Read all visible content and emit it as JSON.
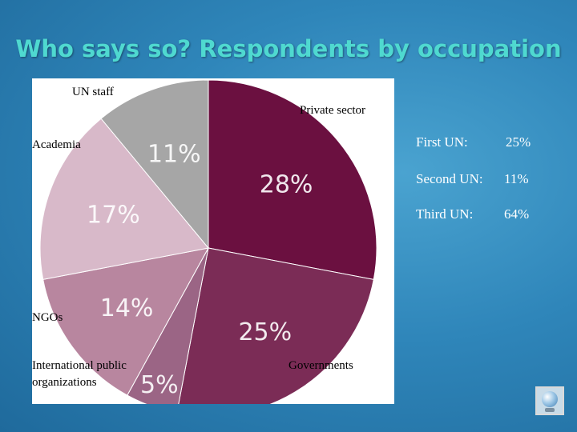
{
  "title": "Who says so? Respondents by occupation",
  "chart_data": {
    "type": "pie",
    "title": "",
    "slices": [
      {
        "label": "Private sector",
        "value": 28,
        "value_label": "28%",
        "color": "#6b1040"
      },
      {
        "label": "Governments",
        "value": 25,
        "value_label": "25%",
        "color": "#7b2c56"
      },
      {
        "label": "International public organizations",
        "value": 5,
        "value_label": "5%",
        "color": "#9b6585"
      },
      {
        "label": "NGOs",
        "value": 14,
        "value_label": "14%",
        "color": "#b8869f"
      },
      {
        "label": "Academia",
        "value": 17,
        "value_label": "17%",
        "color": "#d8b9c9"
      },
      {
        "label": "UN staff",
        "value": 11,
        "value_label": "11%",
        "color": "#a6a6a6"
      }
    ],
    "category_labels": {
      "un_staff": "UN staff",
      "private_sector": "Private sector",
      "academia": "Academia",
      "ngos": "NGOs",
      "intl_line1": "International public",
      "intl_line2": "organizations",
      "governments": "Governments"
    }
  },
  "stats": [
    {
      "label": "First UN:",
      "value": "25%"
    },
    {
      "label": "Second UN:",
      "value": "11%"
    },
    {
      "label": "Third UN:",
      "value": "64%"
    }
  ],
  "icons": {
    "corner": "crystal-globe-icon"
  }
}
